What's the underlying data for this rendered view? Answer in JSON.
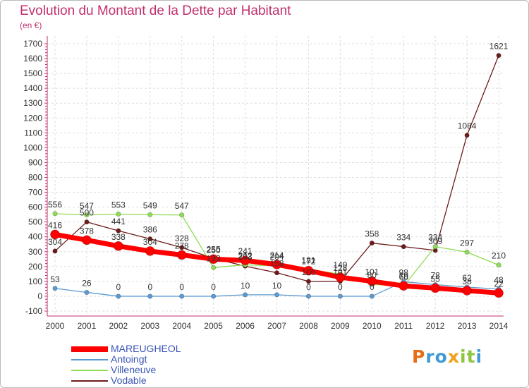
{
  "title": "Evolution du Montant de la Dette par Habitant",
  "subtitle": "(en €)",
  "logo": {
    "letters": [
      "P",
      "r",
      "o",
      "x",
      "i",
      "t",
      "i"
    ],
    "colors": [
      "#e86b17",
      "#3f9ad6",
      "#3f9ad6",
      "#f0a01a",
      "#8ec63f",
      "#8ec63f",
      "#3f9ad6"
    ]
  },
  "chart_data": {
    "type": "line",
    "x": [
      "2000",
      "2001",
      "2002",
      "2003",
      "2004",
      "2005",
      "2006",
      "2007",
      "2008",
      "2009",
      "2010",
      "2011",
      "2012",
      "2013",
      "2014"
    ],
    "ylim": [
      -100,
      1700
    ],
    "yticks": [
      "-100",
      "0",
      "100",
      "200",
      "300",
      "400",
      "500",
      "600",
      "700",
      "800",
      "900",
      "1000",
      "1100",
      "1200",
      "1300",
      "1400",
      "1500",
      "1600",
      "1700"
    ],
    "grid": true,
    "legend_position": "bottom-left",
    "series": [
      {
        "name": "Vodable",
        "color": "#6e1b1b",
        "values": [
          304,
          500,
          441,
          386,
          328,
          255,
          203,
          158,
          100,
          101,
          358,
          334,
          309,
          1084,
          1621
        ],
        "labels": [
          "304",
          "500",
          "441",
          "386",
          "328",
          "255",
          "203",
          "158",
          "100",
          "101",
          "358",
          "334",
          "309",
          "1084",
          "1621"
        ]
      },
      {
        "name": "Villeneuve",
        "color": "#8fdc55",
        "values": [
          556,
          547,
          553,
          549,
          547,
          193,
          212,
          204,
          181,
          149,
          80,
          68,
          334,
          297,
          210
        ],
        "labels": [
          "556",
          "547",
          "553",
          "549",
          "547",
          "193",
          "212",
          "204",
          "181",
          "149",
          "80",
          "68",
          "334",
          "297",
          "210"
        ]
      },
      {
        "name": "Antoingt",
        "color": "#5b9bd1",
        "values": [
          53,
          26,
          0,
          0,
          0,
          0,
          10,
          10,
          0,
          0,
          0,
          98,
          78,
          62,
          48
        ],
        "labels": [
          "53",
          "26",
          "0",
          "0",
          "0",
          "0",
          "10",
          "10",
          "0",
          "0",
          "0",
          "98",
          "78",
          "62",
          "48"
        ]
      },
      {
        "name": "MAREUGHEOL",
        "color": "#ff0000",
        "values": [
          416,
          378,
          338,
          304,
          278,
          250,
          241,
          214,
          172,
          128,
          101,
          70,
          55,
          38,
          22
        ],
        "labels": [
          "416",
          "378",
          "338",
          "304",
          "278",
          "250",
          "241",
          "214",
          "172",
          "128",
          "101",
          "70",
          "55",
          "38",
          "22"
        ]
      }
    ],
    "legend_order": [
      "MAREUGHEOL",
      "Antoingt",
      "Villeneuve",
      "Vodable"
    ]
  }
}
